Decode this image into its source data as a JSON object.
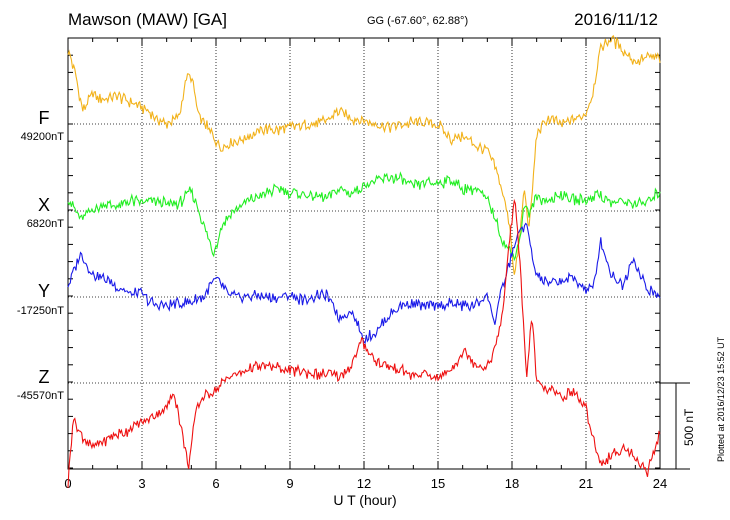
{
  "header": {
    "station": "Mawson (MAW)  [GA]",
    "coords": "GG (-67.60°,  62.88°)",
    "date": "2016/11/12"
  },
  "footer": {
    "xlabel": "U T (hour)",
    "plotted": "Plotted at 2016/12/23 15:52 UT",
    "scale": "500 nT"
  },
  "chart_data": {
    "type": "line",
    "xlabel": "U T (hour)",
    "xlim": [
      0,
      24
    ],
    "x_ticks": [
      "0",
      "3",
      "6",
      "9",
      "12",
      "15",
      "18",
      "21",
      "24"
    ],
    "scale_bar_nT": 500,
    "grid": true,
    "series": [
      {
        "name": "F",
        "baseline_label": "49200nT",
        "baseline_nT": 49200,
        "color": "#f2b21b",
        "x": [
          0,
          0.3,
          0.6,
          1,
          1.5,
          2,
          2.5,
          3,
          3.5,
          4,
          4.5,
          4.8,
          5.0,
          5.3,
          5.6,
          5.9,
          6.2,
          6.5,
          7,
          7.5,
          8,
          8.5,
          9,
          9.5,
          10,
          10.5,
          11,
          11.5,
          12,
          12.5,
          13,
          13.5,
          14,
          14.5,
          15,
          15.5,
          16,
          16.5,
          17,
          17.3,
          17.6,
          17.9,
          18.1,
          18.3,
          18.5,
          18.7,
          19,
          19.5,
          20,
          20.5,
          21,
          21.3,
          21.6,
          22,
          22.5,
          23,
          23.5,
          24
        ],
        "values": [
          430,
          290,
          80,
          170,
          140,
          160,
          130,
          100,
          40,
          0,
          40,
          270,
          280,
          40,
          -10,
          -70,
          -140,
          -110,
          -90,
          -60,
          -30,
          -40,
          -20,
          -10,
          0,
          20,
          80,
          30,
          20,
          0,
          -20,
          0,
          10,
          10,
          0,
          -90,
          -70,
          -120,
          -160,
          -250,
          -380,
          -580,
          -900,
          -680,
          -380,
          -620,
          -50,
          30,
          0,
          20,
          60,
          200,
          450,
          500,
          430,
          360,
          390,
          380
        ]
      },
      {
        "name": "X",
        "baseline_label": "6820nT",
        "baseline_nT": 6820,
        "color": "#22ee22",
        "x": [
          0,
          0.5,
          1,
          1.5,
          2,
          2.5,
          3,
          3.5,
          4,
          4.5,
          5.0,
          5.3,
          5.6,
          5.9,
          6.2,
          6.5,
          7,
          7.5,
          8,
          8.5,
          9,
          9.5,
          10,
          10.5,
          11,
          11.5,
          12,
          12.5,
          13,
          13.5,
          14,
          14.5,
          15,
          15.5,
          16,
          16.5,
          17,
          17.3,
          17.6,
          17.9,
          18.1,
          18.3,
          18.5,
          18.7,
          19,
          19.5,
          20,
          20.5,
          21,
          21.5,
          22,
          22.5,
          23,
          23.5,
          24
        ],
        "values": [
          80,
          -50,
          10,
          40,
          20,
          60,
          50,
          60,
          40,
          40,
          120,
          10,
          -130,
          -250,
          -100,
          -30,
          30,
          70,
          100,
          130,
          110,
          100,
          80,
          80,
          130,
          100,
          150,
          170,
          200,
          180,
          140,
          170,
          160,
          180,
          130,
          130,
          60,
          -30,
          -170,
          -230,
          -260,
          -180,
          40,
          -20,
          80,
          60,
          100,
          70,
          60,
          110,
          40,
          60,
          40,
          50,
          120
        ]
      },
      {
        "name": "Y",
        "baseline_label": "-17250nT",
        "baseline_nT": -17250,
        "color": "#1a1ae8",
        "x": [
          0,
          0.3,
          0.5,
          1,
          1.5,
          2,
          2.5,
          3,
          3.5,
          4,
          4.5,
          5,
          5.5,
          5.9,
          6.2,
          6.5,
          7,
          7.5,
          8,
          8.5,
          9,
          9.5,
          10,
          10.5,
          11,
          11.5,
          12,
          12.5,
          13,
          13.5,
          14,
          14.5,
          15,
          15.5,
          16,
          16.5,
          17,
          17.3,
          17.6,
          17.9,
          18.1,
          18.3,
          18.6,
          18.8,
          19,
          19.5,
          20,
          20.5,
          21,
          21.3,
          21.6,
          22,
          22.5,
          22.9,
          23.2,
          23.5,
          24
        ],
        "values": [
          60,
          180,
          250,
          130,
          110,
          60,
          20,
          20,
          -50,
          -50,
          -40,
          -30,
          0,
          100,
          80,
          10,
          0,
          10,
          0,
          -10,
          10,
          -20,
          0,
          10,
          -120,
          -80,
          -250,
          -200,
          -110,
          -50,
          -40,
          -60,
          -50,
          -40,
          -50,
          -50,
          10,
          -150,
          50,
          200,
          300,
          380,
          420,
          250,
          120,
          80,
          90,
          110,
          40,
          60,
          330,
          140,
          60,
          240,
          120,
          40,
          0
        ]
      },
      {
        "name": "Z",
        "baseline_label": "-45570nT",
        "baseline_nT": -45570,
        "color": "#ee1111",
        "x": [
          0,
          0.2,
          0.5,
          1,
          1.5,
          2,
          2.5,
          3,
          3.5,
          4,
          4.3,
          4.6,
          4.9,
          5.2,
          5.5,
          6,
          6.5,
          7,
          7.5,
          8,
          8.5,
          9,
          9.5,
          10,
          10.5,
          11,
          11.5,
          11.9,
          12.2,
          12.5,
          13,
          13.5,
          14,
          14.5,
          15,
          15.5,
          16,
          16.5,
          17,
          17.3,
          17.6,
          17.9,
          18.1,
          18.3,
          18.6,
          18.8,
          19,
          19.5,
          20,
          20.5,
          21,
          21.3,
          21.6,
          22,
          22.5,
          23,
          23.5,
          24
        ],
        "values": [
          -600,
          -200,
          -300,
          -380,
          -330,
          -300,
          -270,
          -230,
          -190,
          -140,
          -50,
          -270,
          -480,
          -150,
          -70,
          -40,
          40,
          60,
          90,
          100,
          90,
          70,
          70,
          50,
          50,
          30,
          100,
          240,
          180,
          120,
          90,
          80,
          40,
          50,
          30,
          70,
          180,
          120,
          90,
          200,
          380,
          830,
          1080,
          750,
          30,
          400,
          0,
          -40,
          -80,
          -50,
          -150,
          -320,
          -470,
          -430,
          -370,
          -430,
          -520,
          -280
        ]
      }
    ]
  }
}
